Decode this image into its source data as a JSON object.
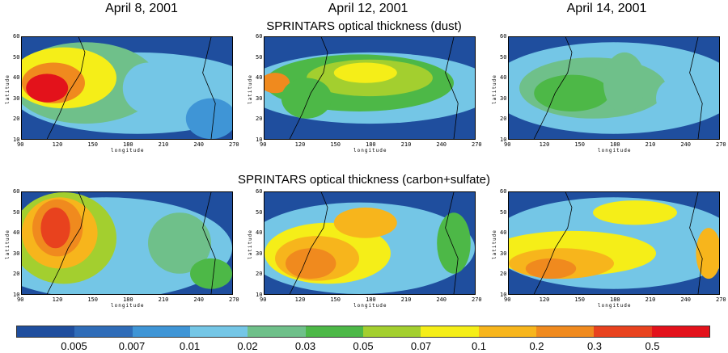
{
  "columns": [
    "April 8, 2001",
    "April 12, 2001",
    "April 14, 2001"
  ],
  "rows": [
    "SPRINTARS optical thickness (dust)",
    "SPRINTARS optical thickness (carbon+sulfate)"
  ],
  "x_ticks": [
    "90",
    "120",
    "150",
    "180",
    "210",
    "240",
    "270"
  ],
  "y_ticks": [
    "60",
    "50",
    "40",
    "30",
    "20",
    "10"
  ],
  "x_axis_name": "longitude",
  "y_axis_name": "latitude",
  "colorbar": {
    "colors": [
      "#1f4e9e",
      "#2f6cb8",
      "#3f95d6",
      "#74c6e6",
      "#6fc08a",
      "#4db847",
      "#a3cf2f",
      "#f5ee18",
      "#f7b51c",
      "#f08a1e",
      "#e8421e",
      "#e3121b"
    ],
    "labels": [
      "0.005",
      "0.007",
      "0.01",
      "0.02",
      "0.03",
      "0.05",
      "0.07",
      "0.1",
      "0.2",
      "0.3",
      "0.5"
    ]
  }
}
